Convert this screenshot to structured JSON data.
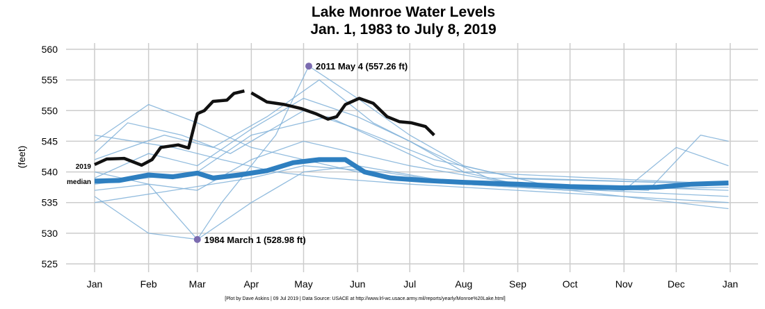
{
  "chart_data": {
    "type": "line",
    "title": "Lake Monroe Water Levels",
    "subtitle": "Jan. 1, 1983 to July 8, 2019",
    "ylabel": "(feet)",
    "xlabel": "",
    "ylim": [
      525,
      560
    ],
    "yticks": [
      525,
      530,
      535,
      540,
      545,
      550,
      555,
      560
    ],
    "xticks": [
      "Jan",
      "Feb",
      "Mar",
      "Apr",
      "May",
      "Jun",
      "Jul",
      "Aug",
      "Sep",
      "Oct",
      "Nov",
      "Dec",
      "Jan"
    ],
    "grid": true,
    "footer": "[Plot by Dave Askins | 09 Jul 2019 | Data Source: USACE at http://www.lrl-wc.usace.army.mil/reports/yearly/Monroe%20Lake.html]",
    "colors": {
      "history": "#7fb0d8",
      "median": "#2e7fc0",
      "current": "#111111",
      "extreme": "#7b6bb0",
      "grid": "#cccccc"
    },
    "series": [
      {
        "name": "2019",
        "role": "current",
        "points": [
          [
            "01-01",
            541.2
          ],
          [
            "01-08",
            542.1
          ],
          [
            "01-18",
            542.2
          ],
          [
            "01-28",
            541.1
          ],
          [
            "02-03",
            542.0
          ],
          [
            "02-08",
            544.0
          ],
          [
            "02-18",
            544.4
          ],
          [
            "02-24",
            543.9
          ],
          [
            "03-01",
            549.5
          ],
          [
            "03-05",
            550.0
          ],
          [
            "03-10",
            551.5
          ],
          [
            "03-18",
            551.7
          ],
          [
            "03-22",
            552.8
          ],
          [
            "03-28",
            553.2
          ]
        ]
      },
      {
        "name": "2019",
        "role": "current",
        "points": [
          [
            "04-01",
            552.9
          ],
          [
            "04-10",
            551.4
          ],
          [
            "04-20",
            551.0
          ],
          [
            "04-30",
            550.3
          ],
          [
            "05-08",
            549.5
          ],
          [
            "05-15",
            548.6
          ],
          [
            "05-20",
            549.0
          ],
          [
            "05-25",
            551.0
          ],
          [
            "06-02",
            552.0
          ],
          [
            "06-10",
            551.2
          ],
          [
            "06-18",
            549.0
          ],
          [
            "06-25",
            548.2
          ],
          [
            "07-02",
            548.0
          ],
          [
            "07-10",
            547.4
          ],
          [
            "07-15",
            546.0
          ]
        ]
      },
      {
        "name": "median",
        "role": "median",
        "points": [
          [
            "01-01",
            538.5
          ],
          [
            "01-15",
            538.6
          ],
          [
            "02-01",
            539.5
          ],
          [
            "02-15",
            539.2
          ],
          [
            "03-01",
            539.8
          ],
          [
            "03-10",
            539.0
          ],
          [
            "03-25",
            539.5
          ],
          [
            "04-10",
            540.2
          ],
          [
            "04-25",
            541.5
          ],
          [
            "05-10",
            542.0
          ],
          [
            "05-25",
            542.0
          ],
          [
            "06-05",
            540.0
          ],
          [
            "06-20",
            539.0
          ],
          [
            "07-10",
            538.6
          ],
          [
            "08-01",
            538.3
          ],
          [
            "09-01",
            538.0
          ],
          [
            "10-01",
            537.6
          ],
          [
            "11-01",
            537.4
          ],
          [
            "11-20",
            537.5
          ],
          [
            "12-10",
            538.0
          ],
          [
            "12-31",
            538.2
          ]
        ]
      }
    ],
    "history_traces": [
      [
        [
          "01-01",
          545
        ],
        [
          "02-01",
          551
        ],
        [
          "03-01",
          548
        ],
        [
          "04-01",
          544
        ],
        [
          "05-01",
          542
        ],
        [
          "06-01",
          540
        ],
        [
          "08-01",
          538
        ],
        [
          "10-01",
          537
        ],
        [
          "12-31",
          537.5
        ]
      ],
      [
        [
          "01-01",
          536
        ],
        [
          "02-01",
          530
        ],
        [
          "03-01",
          529
        ],
        [
          "03-15",
          535
        ],
        [
          "04-15",
          546
        ],
        [
          "05-04",
          557.26
        ],
        [
          "06-01",
          552
        ],
        [
          "07-01",
          546
        ],
        [
          "08-01",
          541
        ],
        [
          "09-15",
          538
        ],
        [
          "12-31",
          537
        ]
      ],
      [
        [
          "01-01",
          537
        ],
        [
          "02-01",
          538
        ],
        [
          "03-01",
          528.98
        ],
        [
          "04-01",
          535
        ],
        [
          "05-01",
          540
        ],
        [
          "06-01",
          541
        ],
        [
          "08-01",
          538
        ],
        [
          "12-31",
          536
        ]
      ],
      [
        [
          "01-01",
          542
        ],
        [
          "02-10",
          546
        ],
        [
          "03-10",
          544
        ],
        [
          "04-10",
          549
        ],
        [
          "05-10",
          555
        ],
        [
          "06-10",
          548
        ],
        [
          "07-15",
          543
        ],
        [
          "08-15",
          539
        ],
        [
          "12-31",
          538
        ]
      ],
      [
        [
          "01-01",
          539
        ],
        [
          "02-01",
          543
        ],
        [
          "03-01",
          541
        ],
        [
          "04-01",
          547
        ],
        [
          "05-01",
          552
        ],
        [
          "06-01",
          549
        ],
        [
          "07-01",
          545
        ],
        [
          "08-01",
          540
        ],
        [
          "12-31",
          538
        ]
      ],
      [
        [
          "01-01",
          538
        ],
        [
          "03-01",
          540
        ],
        [
          "04-01",
          546
        ],
        [
          "05-15",
          549
        ],
        [
          "06-15",
          545
        ],
        [
          "07-15",
          541
        ],
        [
          "09-01",
          538
        ],
        [
          "11-15",
          537
        ],
        [
          "12-15",
          546
        ],
        [
          "12-31",
          545
        ]
      ],
      [
        [
          "01-01",
          546
        ],
        [
          "02-15",
          544
        ],
        [
          "03-15",
          542
        ],
        [
          "04-15",
          540
        ],
        [
          "05-15",
          539
        ],
        [
          "07-01",
          538
        ],
        [
          "10-01",
          536.5
        ],
        [
          "12-31",
          535
        ]
      ],
      [
        [
          "01-01",
          540
        ],
        [
          "02-01",
          538
        ],
        [
          "03-01",
          537
        ],
        [
          "04-01",
          542
        ],
        [
          "05-01",
          545
        ],
        [
          "06-01",
          543
        ],
        [
          "07-01",
          541
        ],
        [
          "09-01",
          538
        ],
        [
          "11-01",
          537
        ],
        [
          "12-01",
          544
        ],
        [
          "12-31",
          541
        ]
      ],
      [
        [
          "01-01",
          535
        ],
        [
          "02-15",
          537
        ],
        [
          "04-01",
          539
        ],
        [
          "05-01",
          541
        ],
        [
          "06-15",
          540
        ],
        [
          "08-01",
          538
        ],
        [
          "10-01",
          537
        ],
        [
          "12-31",
          534
        ]
      ],
      [
        [
          "01-01",
          543
        ],
        [
          "01-20",
          548
        ],
        [
          "02-20",
          546
        ],
        [
          "03-20",
          543
        ],
        [
          "05-01",
          550
        ],
        [
          "06-01",
          547
        ],
        [
          "07-15",
          542
        ],
        [
          "09-01",
          539
        ],
        [
          "12-31",
          538
        ]
      ]
    ],
    "annotations": [
      {
        "label": "2011 May 4 (557.26 ft)",
        "date": "05-04",
        "value": 557.26
      },
      {
        "label": "1984 March 1 (528.98 ft)",
        "date": "03-01",
        "value": 528.98
      }
    ],
    "series_labels": {
      "current": "2019",
      "median": "median"
    }
  }
}
